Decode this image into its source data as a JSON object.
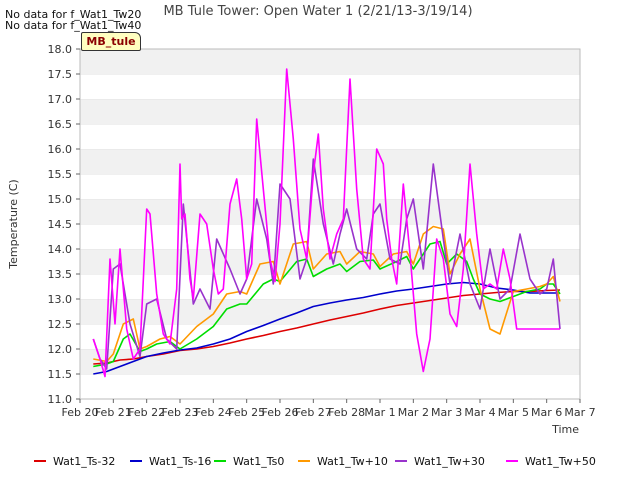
{
  "notes": [
    "No data for f_Wat1_Tw20",
    "No data for f_Wat1_Tw40"
  ],
  "tag_label": "MB_tule",
  "chart_data": {
    "type": "line",
    "title": "MB Tule Tower: Open Water 1 (2/21/13-3/19/14)",
    "xlabel": "Time",
    "ylabel": "Temperature (C)",
    "ylim": [
      11.0,
      18.0
    ],
    "xlim": [
      0,
      15
    ],
    "yticks": [
      11.0,
      11.5,
      12.0,
      12.5,
      13.0,
      13.5,
      14.0,
      14.5,
      15.0,
      15.5,
      16.0,
      16.5,
      17.0,
      17.5,
      18.0
    ],
    "x_tick_labels": [
      "Feb 20",
      "Feb 21",
      "Feb 22",
      "Feb 23",
      "Feb 24",
      "Feb 25",
      "Feb 26",
      "Feb 27",
      "Feb 28",
      "Mar 1",
      "Mar 2",
      "Mar 3",
      "Mar 4",
      "Mar 5",
      "Mar 6",
      "Mar 7"
    ],
    "grid": "horizontal bands",
    "legend_position": "bottom",
    "series": [
      {
        "name": "Wat1_Ts-32",
        "color": "#dd0000",
        "x": [
          0.4,
          0.8,
          1.2,
          1.6,
          2.0,
          2.5,
          3.0,
          3.5,
          4.0,
          4.5,
          5.0,
          5.5,
          6.0,
          6.5,
          7.0,
          7.5,
          8.0,
          8.5,
          9.0,
          9.5,
          10.0,
          10.5,
          11.0,
          11.5,
          12.0,
          12.5,
          13.0,
          13.5,
          14.0,
          14.4
        ],
        "y": [
          11.7,
          11.72,
          11.78,
          11.8,
          11.85,
          11.9,
          11.97,
          12.0,
          12.05,
          12.12,
          12.2,
          12.27,
          12.35,
          12.42,
          12.5,
          12.58,
          12.65,
          12.72,
          12.8,
          12.87,
          12.92,
          12.97,
          13.02,
          13.07,
          13.1,
          13.13,
          13.15,
          13.15,
          13.17,
          13.18
        ]
      },
      {
        "name": "Wat1_Ts-16",
        "color": "#0000cc",
        "x": [
          0.4,
          0.8,
          1.2,
          1.6,
          2.0,
          2.5,
          3.0,
          3.5,
          4.0,
          4.5,
          5.0,
          5.5,
          6.0,
          6.5,
          7.0,
          7.5,
          8.0,
          8.5,
          9.0,
          9.5,
          10.0,
          10.5,
          11.0,
          11.5,
          12.0,
          12.5,
          13.0,
          13.5,
          14.0,
          14.4
        ],
        "y": [
          11.5,
          11.55,
          11.65,
          11.75,
          11.85,
          11.92,
          11.98,
          12.02,
          12.1,
          12.2,
          12.35,
          12.47,
          12.6,
          12.72,
          12.85,
          12.92,
          12.98,
          13.03,
          13.1,
          13.16,
          13.2,
          13.25,
          13.3,
          13.33,
          13.3,
          13.22,
          13.18,
          13.12,
          13.12,
          13.12
        ]
      },
      {
        "name": "Wat1_Ts0",
        "color": "#00dd00",
        "x": [
          0.4,
          0.8,
          1.0,
          1.3,
          1.5,
          1.8,
          2.0,
          2.3,
          2.7,
          3.0,
          3.5,
          4.0,
          4.4,
          4.8,
          5.0,
          5.5,
          5.8,
          6.0,
          6.5,
          6.8,
          7.0,
          7.4,
          7.8,
          8.0,
          8.4,
          8.8,
          9.0,
          9.5,
          9.8,
          10.0,
          10.3,
          10.5,
          10.8,
          11.0,
          11.3,
          11.6,
          11.8,
          12.0,
          12.3,
          12.6,
          13.0,
          13.4,
          13.8,
          14.0,
          14.2,
          14.4
        ],
        "y": [
          11.65,
          11.7,
          11.75,
          12.2,
          12.3,
          11.95,
          12.0,
          12.1,
          12.15,
          12.0,
          12.2,
          12.45,
          12.8,
          12.9,
          12.9,
          13.3,
          13.4,
          13.35,
          13.75,
          13.8,
          13.45,
          13.6,
          13.7,
          13.55,
          13.75,
          13.78,
          13.6,
          13.75,
          13.85,
          13.6,
          13.9,
          14.1,
          14.15,
          13.7,
          13.9,
          13.75,
          13.4,
          13.1,
          13.0,
          12.95,
          13.05,
          13.15,
          13.2,
          13.3,
          13.3,
          13.1
        ]
      },
      {
        "name": "Wat1_Tw+10",
        "color": "#ff9900",
        "x": [
          0.4,
          0.8,
          1.0,
          1.3,
          1.6,
          1.8,
          2.0,
          2.4,
          2.7,
          3.0,
          3.5,
          4.0,
          4.4,
          4.8,
          5.0,
          5.4,
          5.8,
          6.0,
          6.4,
          6.8,
          7.0,
          7.4,
          7.8,
          8.0,
          8.4,
          8.8,
          9.0,
          9.4,
          9.8,
          10.0,
          10.3,
          10.6,
          10.9,
          11.1,
          11.4,
          11.7,
          12.0,
          12.3,
          12.6,
          13.0,
          13.4,
          13.8,
          14.0,
          14.2,
          14.4
        ],
        "y": [
          11.8,
          11.75,
          11.9,
          12.5,
          12.6,
          12.0,
          12.05,
          12.2,
          12.25,
          12.1,
          12.45,
          12.7,
          13.1,
          13.15,
          13.1,
          13.7,
          13.75,
          13.3,
          14.1,
          14.15,
          13.6,
          13.9,
          13.95,
          13.7,
          13.95,
          13.9,
          13.65,
          13.9,
          13.95,
          13.7,
          14.3,
          14.45,
          14.4,
          13.5,
          13.9,
          14.2,
          13.2,
          12.4,
          12.3,
          13.15,
          13.2,
          13.25,
          13.3,
          13.45,
          12.95
        ]
      },
      {
        "name": "Wat1_Tw+30",
        "color": "#9933cc",
        "x": [
          0.4,
          0.6,
          0.8,
          1.0,
          1.2,
          1.5,
          1.8,
          2.0,
          2.3,
          2.6,
          2.9,
          3.1,
          3.4,
          3.6,
          3.9,
          4.1,
          4.5,
          4.8,
          5.0,
          5.3,
          5.6,
          5.8,
          6.0,
          6.3,
          6.6,
          6.8,
          7.0,
          7.3,
          7.6,
          7.8,
          8.0,
          8.3,
          8.6,
          8.8,
          9.0,
          9.3,
          9.6,
          9.8,
          10.0,
          10.3,
          10.6,
          10.9,
          11.1,
          11.4,
          11.7,
          12.0,
          12.3,
          12.6,
          12.9,
          13.2,
          13.5,
          13.8,
          14.0,
          14.2,
          14.4
        ],
        "y": [
          12.2,
          11.8,
          11.6,
          13.6,
          13.7,
          12.5,
          11.85,
          12.9,
          13.0,
          12.2,
          12.0,
          14.9,
          12.9,
          13.2,
          12.8,
          14.2,
          13.6,
          13.1,
          13.4,
          15.0,
          14.2,
          13.3,
          15.3,
          15.0,
          13.4,
          13.8,
          15.8,
          14.5,
          13.7,
          14.3,
          14.8,
          14.0,
          13.8,
          14.7,
          14.9,
          13.8,
          13.7,
          14.6,
          15.0,
          13.6,
          15.7,
          14.2,
          13.3,
          14.3,
          13.3,
          12.8,
          14.0,
          13.0,
          13.2,
          14.3,
          13.4,
          13.1,
          13.2,
          13.8,
          12.4
        ]
      },
      {
        "name": "Wat1_Tw+50",
        "color": "#ff00ff",
        "x": [
          0.4,
          0.6,
          0.75,
          0.9,
          1.05,
          1.2,
          1.4,
          1.6,
          1.8,
          2.0,
          2.1,
          2.3,
          2.5,
          2.7,
          2.9,
          3.0,
          3.05,
          3.15,
          3.3,
          3.4,
          3.6,
          3.8,
          4.0,
          4.15,
          4.3,
          4.5,
          4.7,
          4.85,
          5.0,
          5.15,
          5.3,
          5.5,
          5.7,
          5.85,
          6.0,
          6.2,
          6.4,
          6.6,
          6.8,
          7.0,
          7.15,
          7.3,
          7.5,
          7.7,
          7.9,
          8.1,
          8.3,
          8.5,
          8.7,
          8.9,
          9.1,
          9.2,
          9.35,
          9.5,
          9.7,
          9.9,
          10.1,
          10.3,
          10.5,
          10.7,
          10.9,
          11.1,
          11.3,
          11.5,
          11.7,
          11.9,
          12.1,
          12.3,
          12.5,
          12.7,
          12.9,
          13.1,
          13.3,
          13.5,
          13.7,
          13.9,
          14.1,
          14.3,
          14.4
        ],
        "y": [
          12.2,
          11.8,
          11.45,
          13.8,
          12.5,
          14.0,
          12.4,
          11.8,
          12.0,
          14.8,
          14.7,
          13.1,
          12.3,
          12.1,
          13.2,
          15.7,
          14.6,
          14.7,
          13.4,
          13.0,
          14.7,
          14.5,
          13.6,
          13.1,
          13.2,
          14.9,
          15.4,
          14.6,
          13.4,
          13.7,
          16.6,
          15.2,
          13.8,
          13.35,
          14.5,
          17.6,
          16.2,
          14.4,
          13.8,
          15.5,
          16.3,
          14.8,
          13.8,
          14.3,
          14.6,
          17.4,
          15.2,
          13.8,
          13.6,
          16.0,
          15.7,
          14.6,
          13.8,
          13.3,
          15.3,
          13.9,
          12.3,
          11.55,
          12.2,
          14.2,
          13.8,
          12.7,
          12.45,
          13.6,
          15.7,
          14.3,
          13.2,
          13.3,
          13.2,
          14.0,
          13.4,
          12.4,
          12.4,
          12.4,
          12.4,
          12.4,
          12.4,
          12.4,
          12.4
        ]
      }
    ]
  }
}
